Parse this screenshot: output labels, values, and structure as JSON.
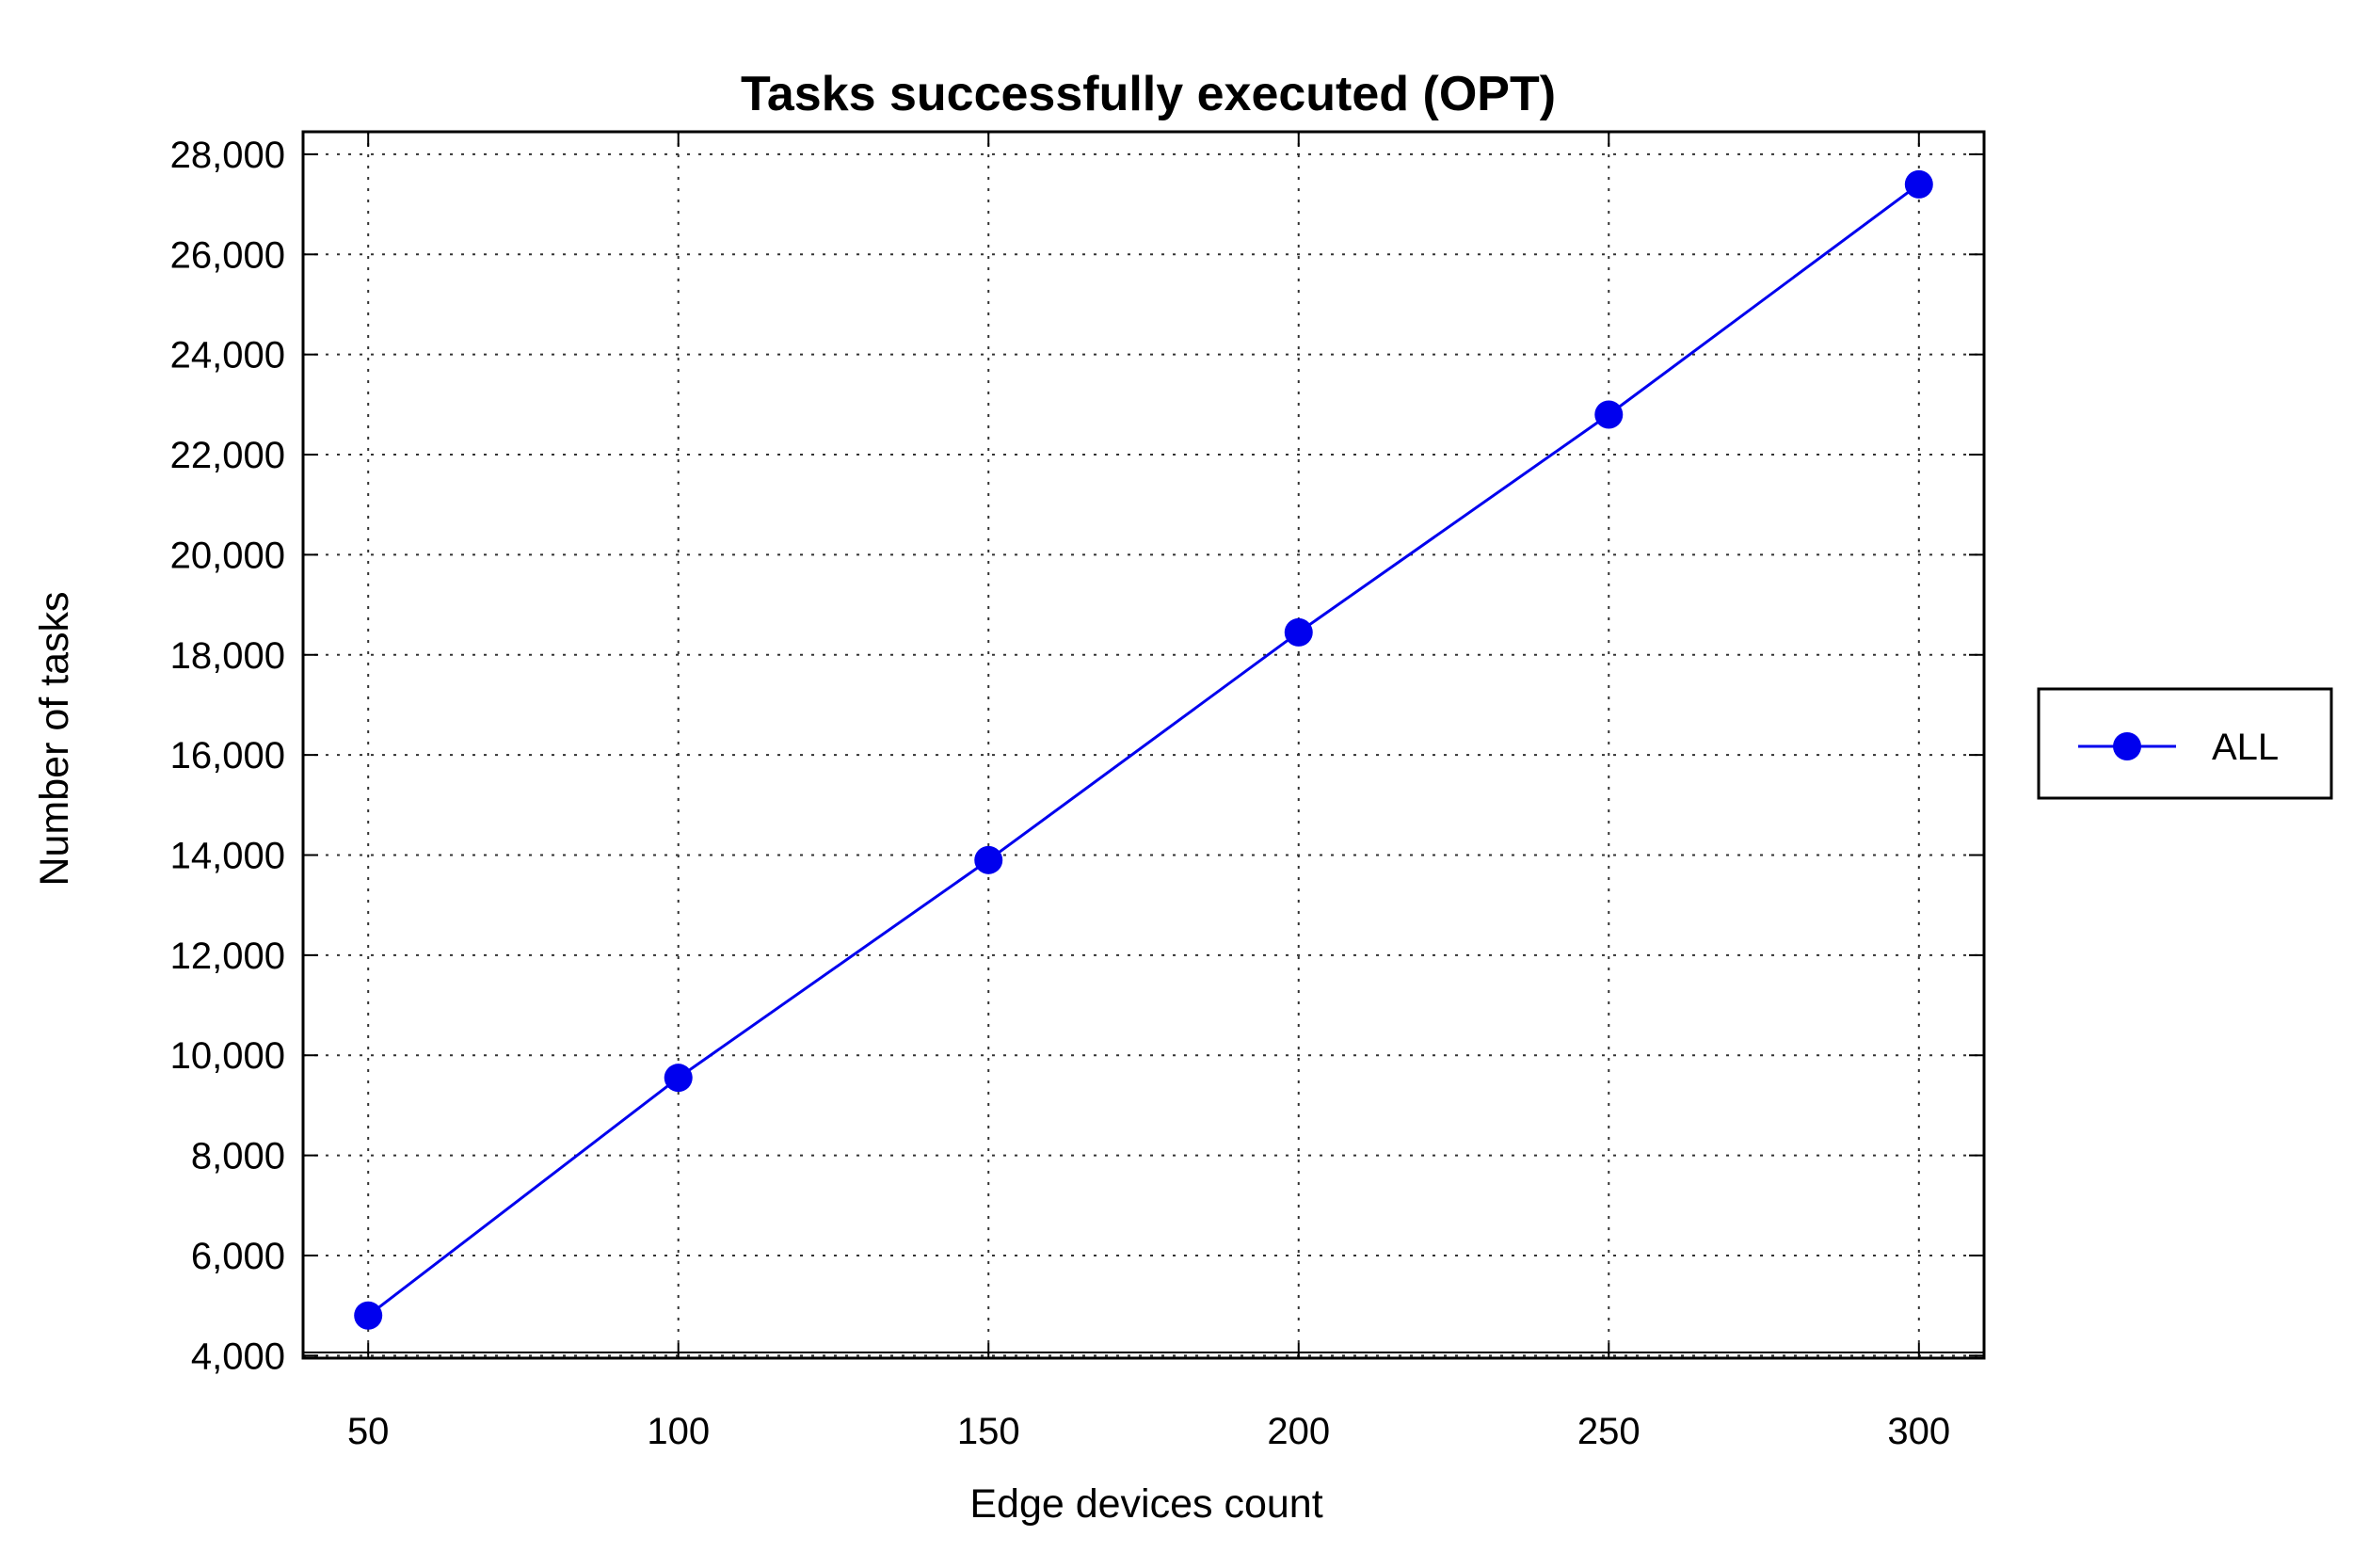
{
  "chart_data": {
    "type": "line",
    "title": "Tasks successfully executed (OPT)",
    "xlabel": "Edge devices count",
    "ylabel": "Number of tasks",
    "x": [
      50,
      100,
      150,
      200,
      250,
      300
    ],
    "x_ticks": [
      "50",
      "100",
      "150",
      "200",
      "250",
      "300"
    ],
    "y_ticks": [
      "4,000",
      "6,000",
      "8,000",
      "10,000",
      "12,000",
      "14,000",
      "16,000",
      "18,000",
      "20,000",
      "22,000",
      "24,000",
      "26,000",
      "28,000"
    ],
    "y_tick_values": [
      4000,
      6000,
      8000,
      10000,
      12000,
      14000,
      16000,
      18000,
      20000,
      22000,
      24000,
      26000,
      28000
    ],
    "xlim": [
      39.5,
      310.5
    ],
    "ylim": [
      3950,
      28450
    ],
    "grid": true,
    "legend_position": "right",
    "series": [
      {
        "name": "ALL",
        "color": "#0000ee",
        "marker": "circle",
        "values": [
          4800,
          9550,
          13900,
          18450,
          22800,
          27400
        ]
      }
    ]
  }
}
